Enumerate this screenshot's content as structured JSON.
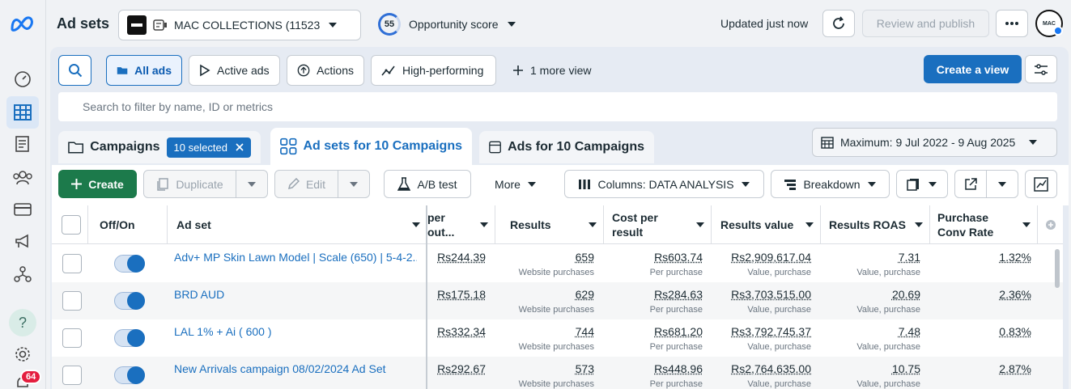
{
  "header": {
    "title": "Ad sets",
    "account_name": "MAC COLLECTIONS (11523...",
    "opportunity_score": "55",
    "opportunity_label": "Opportunity score",
    "updated": "Updated just now",
    "review_label": "Review and publish",
    "avatar_text": "MAC"
  },
  "rail": {
    "notification_count": "64",
    "help": "?"
  },
  "views": {
    "all_ads": "All ads",
    "active_ads": "Active ads",
    "actions": "Actions",
    "high_performing": "High-performing",
    "more_view": "1 more view",
    "create_view": "Create a view"
  },
  "search": {
    "placeholder": "Search to filter by name, ID or metrics"
  },
  "tabs": {
    "campaigns": "Campaigns",
    "selected_badge": "10 selected",
    "ad_sets": "Ad sets for 10 Campaigns",
    "ads": "Ads for 10 Campaigns",
    "date_range": "Maximum: 9 Jul 2022 - 9 Aug 2025"
  },
  "toolbar": {
    "create": "Create",
    "duplicate": "Duplicate",
    "edit": "Edit",
    "ab_test": "A/B test",
    "more": "More",
    "columns": "Columns: DATA ANALYSIS",
    "breakdown": "Breakdown"
  },
  "table": {
    "headers": {
      "offon": "Off/On",
      "adset": "Ad set",
      "cost_per_outbound_a": "per",
      "cost_per_outbound_b": "out...",
      "results": "Results",
      "cost_per_result_a": "Cost per",
      "cost_per_result_b": "result",
      "results_value": "Results value",
      "results_roas": "Results ROAS",
      "purchase_conv_a": "Purchase",
      "purchase_conv_b": "Conv Rate"
    },
    "rows": [
      {
        "name": "Adv+ MP Skin Lawn Model | Scale (650) | 5-4-2...",
        "cpo": "Rs244.39",
        "results": "659",
        "results_sub": "Website purchases",
        "cpr": "Rs603.74",
        "cpr_sub": "Per purchase",
        "value": "Rs2,909,617.04",
        "value_sub": "Value, purchase",
        "roas": "7.31",
        "roas_sub": "Value, purchase",
        "conv": "1.32%"
      },
      {
        "name": "BRD AUD",
        "cpo": "Rs175.18",
        "results": "629",
        "results_sub": "Website purchases",
        "cpr": "Rs284.63",
        "cpr_sub": "Per purchase",
        "value": "Rs3,703,515.00",
        "value_sub": "Value, purchase",
        "roas": "20.69",
        "roas_sub": "Value, purchase",
        "conv": "2.36%"
      },
      {
        "name": "LAL 1% + Ai ( 600 )",
        "cpo": "Rs332.34",
        "results": "744",
        "results_sub": "Website purchases",
        "cpr": "Rs681.20",
        "cpr_sub": "Per purchase",
        "value": "Rs3,792,745.37",
        "value_sub": "Value, purchase",
        "roas": "7.48",
        "roas_sub": "Value, purchase",
        "conv": "0.83%"
      },
      {
        "name": "New Arrivals campaign 08/02/2024 Ad Set",
        "cpo": "Rs292.67",
        "results": "573",
        "results_sub": "Website purchases",
        "cpr": "Rs448.96",
        "cpr_sub": "Per purchase",
        "value": "Rs2,764,635.00",
        "value_sub": "Value, purchase",
        "roas": "10.75",
        "roas_sub": "Value, purchase",
        "conv": "2.87%"
      }
    ]
  },
  "colors": {
    "accent": "#1a6fbf",
    "create_green": "#1c7a4b",
    "badge_red": "#e41e3f"
  }
}
